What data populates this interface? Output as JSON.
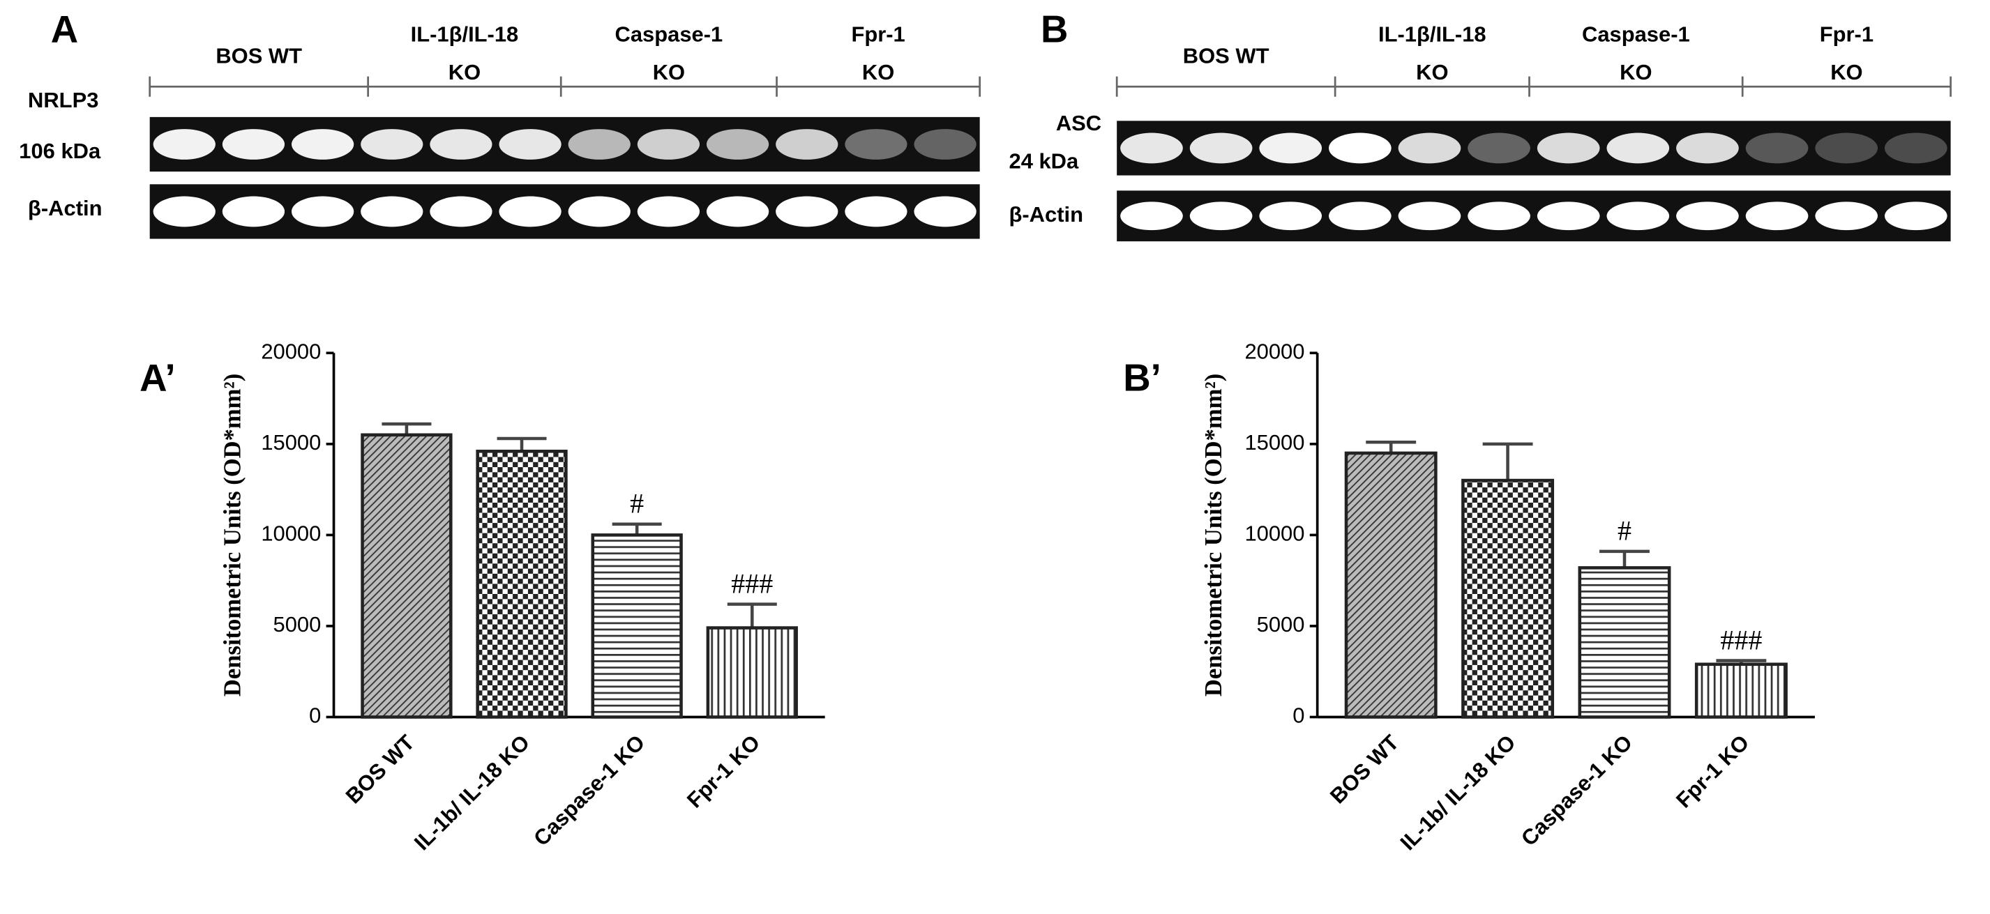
{
  "blots": [
    {
      "panel": "A",
      "groups": [
        [
          "BOS WT"
        ],
        [
          "IL-1β/IL-18",
          "KO"
        ],
        [
          "Caspase-1",
          "KO"
        ],
        [
          "Fpr-1",
          "KO"
        ]
      ],
      "rows": [
        [
          "NRLP3",
          "106 kDa"
        ],
        [
          "β-Actin"
        ]
      ]
    },
    {
      "panel": "B",
      "groups": [
        [
          "BOS WT"
        ],
        [
          "IL-1β/IL-18",
          "KO"
        ],
        [
          "Caspase-1",
          "KO"
        ],
        [
          "Fpr-1",
          "KO"
        ]
      ],
      "rows": [
        [
          "ASC",
          "24 kDa"
        ],
        [
          "β-Actin"
        ]
      ]
    }
  ],
  "chart_data": [
    {
      "type": "bar",
      "panel": "A’",
      "y_label": "Densitometric Units (OD*mm²)",
      "categories": [
        "BOS WT",
        "IL-1b/ IL-18 KO",
        "Caspase-1 KO",
        "Fpr-1  KO"
      ],
      "values": [
        15500,
        14600,
        10000,
        4900
      ],
      "errors": [
        600,
        700,
        600,
        1300
      ],
      "annotations": [
        null,
        null,
        "#",
        "###"
      ],
      "ylim": [
        0,
        20000
      ],
      "yticks": [
        0,
        5000,
        10000,
        15000,
        20000
      ],
      "color": "#444444"
    },
    {
      "type": "bar",
      "panel": "B’",
      "y_label": "Densitometric Units (OD*mm²)",
      "categories": [
        "BOS WT",
        "IL-1b/ IL-18 KO",
        "Caspase-1 KO",
        "Fpr-1  KO"
      ],
      "values": [
        14500,
        13000,
        8200,
        2900
      ],
      "errors": [
        600,
        2000,
        900,
        200
      ],
      "annotations": [
        null,
        null,
        "#",
        "###"
      ],
      "ylim": [
        0,
        20000
      ],
      "yticks": [
        0,
        5000,
        10000,
        15000,
        20000
      ],
      "color": "#444444"
    }
  ]
}
